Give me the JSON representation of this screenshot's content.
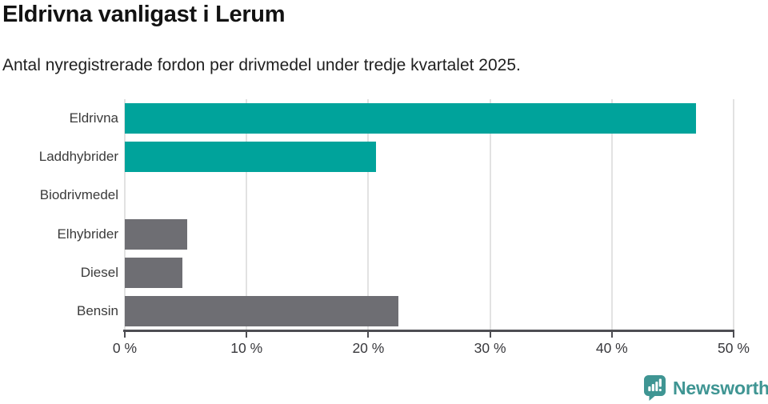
{
  "header": {
    "title": "Eldrivna vanligast i Lerum",
    "subtitle": "Antal nyregistrerade fordon per drivmedel under tredje kvartalet 2025."
  },
  "chart_data": {
    "type": "bar",
    "orientation": "horizontal",
    "title": "Eldrivna vanligast i Lerum",
    "subtitle": "Antal nyregistrerade fordon per drivmedel under tredje kvartalet 2025.",
    "categories": [
      "Eldrivna",
      "Laddhybrider",
      "Biodrivmedel",
      "Elhybrider",
      "Diesel",
      "Bensin"
    ],
    "values": [
      46.9,
      20.6,
      0,
      5.1,
      4.7,
      22.5
    ],
    "unit": "%",
    "bar_colors": [
      "#00A39B",
      "#00A39B",
      "#6E6E73",
      "#6E6E73",
      "#6E6E73",
      "#6E6E73"
    ],
    "xlabel": "",
    "ylabel": "",
    "xlim": [
      0,
      50
    ],
    "xticks": [
      0,
      10,
      20,
      30,
      40,
      50
    ],
    "xtick_labels": [
      "0 %",
      "10 %",
      "20 %",
      "30 %",
      "40 %",
      "50 %"
    ],
    "grid": true,
    "gridline_color": "#e2e2e2",
    "axis_color": "#4e4e53",
    "legend": "none"
  },
  "footer": {
    "brand": "Newsworthy",
    "brand_color": "#3f9593",
    "logo_icon": "newsworthy-bar-chart-bubble-icon"
  }
}
